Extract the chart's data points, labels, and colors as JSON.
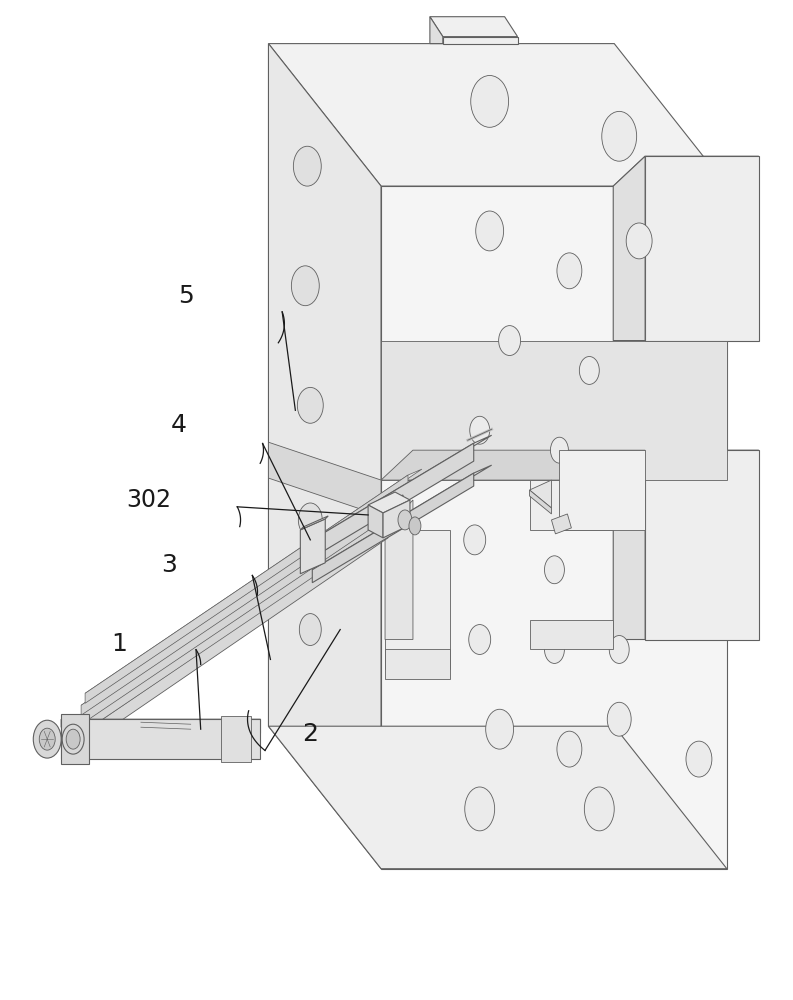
{
  "bg_color": "#ffffff",
  "line_color": "#606060",
  "face_top": "#f0f0f0",
  "face_left": "#e0e0e0",
  "face_right": "#ebebeb",
  "face_dark": "#d8d8d8",
  "label_color": "#1a1a1a",
  "label_fontsize": 18,
  "figsize": [
    7.93,
    10.0
  ],
  "dpi": 100
}
